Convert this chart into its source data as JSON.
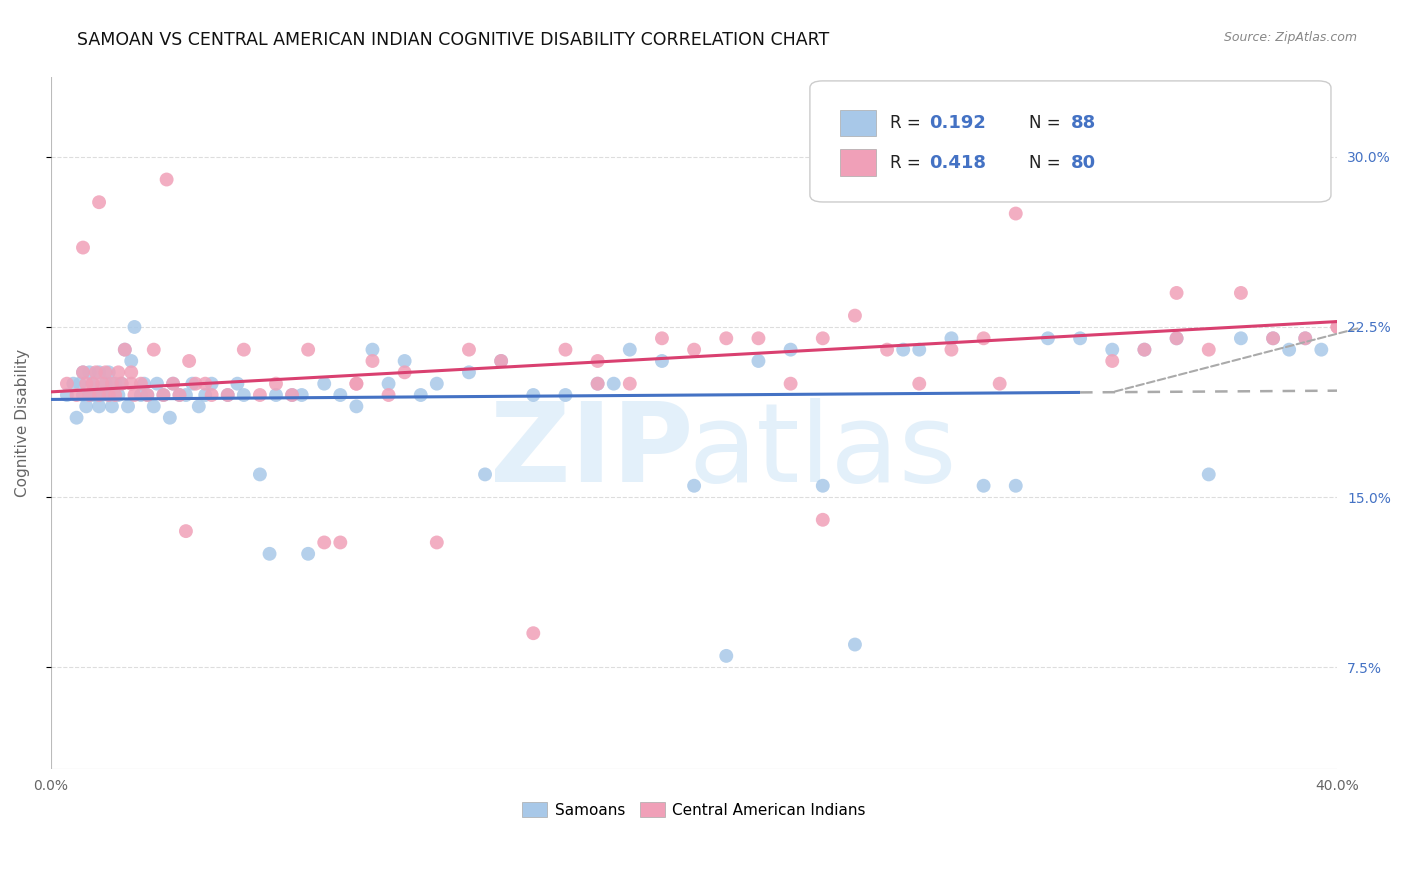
{
  "title": "SAMOAN VS CENTRAL AMERICAN INDIAN COGNITIVE DISABILITY CORRELATION CHART",
  "source": "Source: ZipAtlas.com",
  "ylabel": "Cognitive Disability",
  "ytick_vals": [
    0.075,
    0.15,
    0.225,
    0.3
  ],
  "ytick_labels": [
    "7.5%",
    "15.0%",
    "22.5%",
    "30.0%"
  ],
  "xmin": 0.0,
  "xmax": 0.4,
  "ymin": 0.03,
  "ymax": 0.335,
  "samoan_color": "#a8c8e8",
  "central_color": "#f0a0b8",
  "samoan_line_color": "#4472c4",
  "central_line_color": "#d94070",
  "dashed_line_color": "#aaaaaa",
  "legend_box_color": "#cccccc",
  "watermark_color": "#d8eaf8",
  "annotation_22_5": "22.5%",
  "samoan_x": [
    0.005,
    0.007,
    0.008,
    0.009,
    0.01,
    0.01,
    0.011,
    0.012,
    0.012,
    0.013,
    0.013,
    0.014,
    0.015,
    0.015,
    0.016,
    0.017,
    0.018,
    0.018,
    0.019,
    0.02,
    0.021,
    0.022,
    0.023,
    0.024,
    0.025,
    0.026,
    0.028,
    0.029,
    0.03,
    0.032,
    0.033,
    0.035,
    0.037,
    0.038,
    0.04,
    0.042,
    0.044,
    0.046,
    0.048,
    0.05,
    0.055,
    0.058,
    0.06,
    0.065,
    0.068,
    0.07,
    0.075,
    0.08,
    0.085,
    0.09,
    0.095,
    0.1,
    0.105,
    0.11,
    0.115,
    0.12,
    0.13,
    0.14,
    0.15,
    0.16,
    0.17,
    0.18,
    0.19,
    0.2,
    0.21,
    0.22,
    0.23,
    0.24,
    0.25,
    0.265,
    0.28,
    0.29,
    0.3,
    0.31,
    0.32,
    0.33,
    0.34,
    0.35,
    0.36,
    0.37,
    0.38,
    0.385,
    0.39,
    0.395,
    0.27,
    0.175,
    0.135,
    0.078
  ],
  "samoan_y": [
    0.195,
    0.2,
    0.185,
    0.2,
    0.195,
    0.205,
    0.19,
    0.195,
    0.205,
    0.195,
    0.2,
    0.195,
    0.19,
    0.205,
    0.195,
    0.2,
    0.195,
    0.205,
    0.19,
    0.2,
    0.195,
    0.2,
    0.215,
    0.19,
    0.21,
    0.225,
    0.195,
    0.2,
    0.195,
    0.19,
    0.2,
    0.195,
    0.185,
    0.2,
    0.195,
    0.195,
    0.2,
    0.19,
    0.195,
    0.2,
    0.195,
    0.2,
    0.195,
    0.16,
    0.125,
    0.195,
    0.195,
    0.125,
    0.2,
    0.195,
    0.19,
    0.215,
    0.2,
    0.21,
    0.195,
    0.2,
    0.205,
    0.21,
    0.195,
    0.195,
    0.2,
    0.215,
    0.21,
    0.155,
    0.08,
    0.21,
    0.215,
    0.155,
    0.085,
    0.215,
    0.22,
    0.155,
    0.155,
    0.22,
    0.22,
    0.215,
    0.215,
    0.22,
    0.16,
    0.22,
    0.22,
    0.215,
    0.22,
    0.215,
    0.215,
    0.2,
    0.16,
    0.195
  ],
  "central_x": [
    0.005,
    0.008,
    0.01,
    0.011,
    0.012,
    0.013,
    0.014,
    0.015,
    0.016,
    0.017,
    0.018,
    0.019,
    0.02,
    0.021,
    0.022,
    0.023,
    0.025,
    0.026,
    0.028,
    0.03,
    0.032,
    0.035,
    0.038,
    0.04,
    0.043,
    0.045,
    0.048,
    0.05,
    0.055,
    0.06,
    0.065,
    0.07,
    0.075,
    0.08,
    0.085,
    0.09,
    0.095,
    0.1,
    0.105,
    0.11,
    0.12,
    0.13,
    0.14,
    0.15,
    0.16,
    0.17,
    0.18,
    0.19,
    0.2,
    0.21,
    0.22,
    0.23,
    0.24,
    0.25,
    0.26,
    0.27,
    0.28,
    0.29,
    0.3,
    0.31,
    0.32,
    0.33,
    0.34,
    0.35,
    0.36,
    0.37,
    0.38,
    0.39,
    0.4,
    0.4,
    0.35,
    0.295,
    0.24,
    0.17,
    0.095,
    0.042,
    0.025,
    0.036,
    0.015,
    0.01
  ],
  "central_y": [
    0.2,
    0.195,
    0.205,
    0.2,
    0.195,
    0.2,
    0.205,
    0.195,
    0.2,
    0.205,
    0.195,
    0.2,
    0.195,
    0.205,
    0.2,
    0.215,
    0.205,
    0.195,
    0.2,
    0.195,
    0.215,
    0.195,
    0.2,
    0.195,
    0.21,
    0.2,
    0.2,
    0.195,
    0.195,
    0.215,
    0.195,
    0.2,
    0.195,
    0.215,
    0.13,
    0.13,
    0.2,
    0.21,
    0.195,
    0.205,
    0.13,
    0.215,
    0.21,
    0.09,
    0.215,
    0.21,
    0.2,
    0.22,
    0.215,
    0.22,
    0.22,
    0.2,
    0.22,
    0.23,
    0.215,
    0.2,
    0.215,
    0.22,
    0.275,
    0.3,
    0.3,
    0.21,
    0.215,
    0.22,
    0.215,
    0.24,
    0.22,
    0.22,
    0.225,
    0.225,
    0.24,
    0.2,
    0.14,
    0.2,
    0.2,
    0.135,
    0.2,
    0.29,
    0.28,
    0.26
  ]
}
